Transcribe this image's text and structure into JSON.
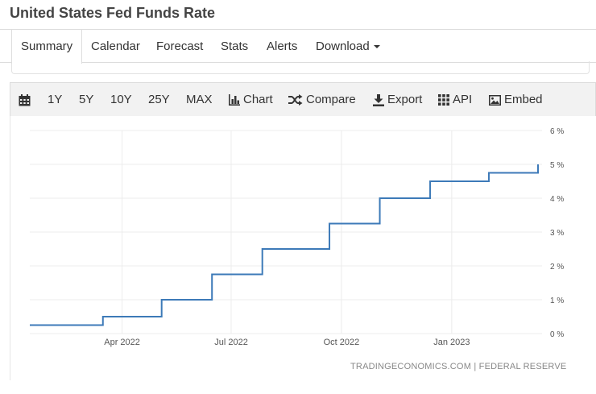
{
  "page": {
    "title": "United States Fed Funds Rate"
  },
  "tabs": [
    {
      "label": "Summary"
    },
    {
      "label": "Calendar"
    },
    {
      "label": "Forecast"
    },
    {
      "label": "Stats"
    },
    {
      "label": "Alerts"
    },
    {
      "label": "Download"
    }
  ],
  "toolbar": {
    "ranges": [
      "1Y",
      "5Y",
      "10Y",
      "25Y",
      "MAX"
    ],
    "chart_label": "Chart",
    "compare_label": "Compare",
    "export_label": "Export",
    "api_label": "API",
    "embed_label": "Embed",
    "icons": [
      "calendar-icon",
      "bar-chart-icon",
      "shuffle-icon",
      "download-icon",
      "grid-icon",
      "image-icon"
    ]
  },
  "chart_data": {
    "type": "line",
    "step": true,
    "title": "",
    "xlabel": "",
    "ylabel": "",
    "x_range": [
      "2022-01-14",
      "2023-03-14"
    ],
    "ylim": [
      0,
      6
    ],
    "y_ticks": [
      "0 %",
      "1 %",
      "2 %",
      "3 %",
      "4 %",
      "5 %",
      "6 %"
    ],
    "y_tick_values": [
      0,
      1,
      2,
      3,
      4,
      5,
      6
    ],
    "x_ticks": [
      {
        "label": "Apr 2022",
        "date": "2022-04-01"
      },
      {
        "label": "Jul 2022",
        "date": "2022-07-01"
      },
      {
        "label": "Oct 2022",
        "date": "2022-10-01"
      },
      {
        "label": "Jan 2023",
        "date": "2023-01-01"
      }
    ],
    "grid": true,
    "line_color": "#3d7ab8",
    "series": [
      {
        "points": [
          {
            "x": "2022-01-14",
            "y": 0.25
          },
          {
            "x": "2022-03-16",
            "y": 0.5
          },
          {
            "x": "2022-05-04",
            "y": 1.0
          },
          {
            "x": "2022-06-15",
            "y": 1.75
          },
          {
            "x": "2022-07-27",
            "y": 2.5
          },
          {
            "x": "2022-09-21",
            "y": 3.25
          },
          {
            "x": "2022-11-02",
            "y": 4.0
          },
          {
            "x": "2022-12-14",
            "y": 4.5
          },
          {
            "x": "2023-02-01",
            "y": 4.75
          },
          {
            "x": "2023-03-14",
            "y": 5.0
          }
        ]
      }
    ]
  },
  "credit": {
    "source": "TRADINGECONOMICS.COM",
    "separator": "|",
    "provider": "FEDERAL RESERVE"
  }
}
